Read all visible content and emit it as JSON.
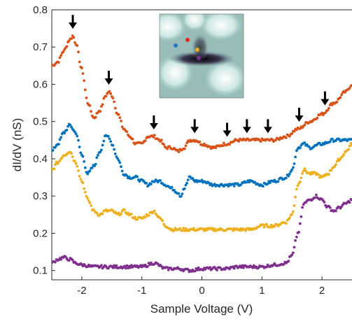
{
  "chart_data": {
    "type": "scatter",
    "title": "",
    "xlabel": "Sample Voltage (V)",
    "ylabel": "dI/dV (nS)",
    "xlim": [
      -2.5,
      2.5
    ],
    "ylim": [
      0.075,
      0.8
    ],
    "x_ticks": [
      -2,
      -1,
      0,
      1,
      2
    ],
    "y_ticks": [
      0.1,
      0.2,
      0.3,
      0.4,
      0.5,
      0.6,
      0.7,
      0.8
    ],
    "x_tick_labels": [
      "-2",
      "-1",
      "0",
      "1",
      "2"
    ],
    "y_tick_labels": [
      "0.1",
      "0.2",
      "0.3",
      "0.4",
      "0.5",
      "0.6",
      "0.7",
      "0.8"
    ],
    "grid": false,
    "legend": null,
    "series": [
      {
        "color": "#D95319",
        "x": [
          -2.5,
          -2.4,
          -2.3,
          -2.2,
          -2.15,
          -2.1,
          -2.0,
          -1.9,
          -1.8,
          -1.7,
          -1.6,
          -1.55,
          -1.5,
          -1.4,
          -1.3,
          -1.2,
          -1.1,
          -1.0,
          -0.9,
          -0.8,
          -0.7,
          -0.6,
          -0.5,
          -0.4,
          -0.3,
          -0.2,
          -0.1,
          0.0,
          0.2,
          0.4,
          0.6,
          0.8,
          1.0,
          1.2,
          1.4,
          1.6,
          1.8,
          2.0,
          2.2,
          2.4,
          2.5
        ],
        "values": [
          0.65,
          0.66,
          0.69,
          0.72,
          0.73,
          0.71,
          0.64,
          0.55,
          0.51,
          0.53,
          0.57,
          0.58,
          0.57,
          0.52,
          0.48,
          0.46,
          0.44,
          0.44,
          0.46,
          0.46,
          0.45,
          0.43,
          0.43,
          0.42,
          0.43,
          0.45,
          0.45,
          0.44,
          0.43,
          0.44,
          0.45,
          0.45,
          0.45,
          0.45,
          0.46,
          0.48,
          0.5,
          0.52,
          0.55,
          0.58,
          0.6
        ]
      },
      {
        "color": "#0072BD",
        "x": [
          -2.5,
          -2.4,
          -2.3,
          -2.2,
          -2.1,
          -2.0,
          -1.9,
          -1.8,
          -1.7,
          -1.6,
          -1.55,
          -1.5,
          -1.4,
          -1.3,
          -1.2,
          -1.1,
          -1.0,
          -0.9,
          -0.8,
          -0.7,
          -0.6,
          -0.5,
          -0.4,
          -0.35,
          -0.3,
          -0.2,
          -0.1,
          0.0,
          0.2,
          0.4,
          0.6,
          0.8,
          1.0,
          1.2,
          1.4,
          1.5,
          1.6,
          1.7,
          1.8,
          2.0,
          2.2,
          2.4,
          2.5
        ],
        "values": [
          0.42,
          0.44,
          0.47,
          0.49,
          0.47,
          0.41,
          0.36,
          0.38,
          0.42,
          0.46,
          0.46,
          0.44,
          0.4,
          0.36,
          0.35,
          0.35,
          0.34,
          0.33,
          0.34,
          0.34,
          0.33,
          0.32,
          0.31,
          0.3,
          0.32,
          0.35,
          0.34,
          0.34,
          0.33,
          0.33,
          0.33,
          0.34,
          0.33,
          0.34,
          0.35,
          0.37,
          0.43,
          0.44,
          0.43,
          0.44,
          0.45,
          0.45,
          0.45
        ]
      },
      {
        "color": "#EDB120",
        "x": [
          -2.5,
          -2.4,
          -2.3,
          -2.2,
          -2.1,
          -2.0,
          -1.9,
          -1.8,
          -1.7,
          -1.6,
          -1.5,
          -1.4,
          -1.3,
          -1.2,
          -1.1,
          -1.0,
          -0.9,
          -0.8,
          -0.7,
          -0.6,
          -0.5,
          -0.4,
          -0.2,
          0.0,
          0.2,
          0.4,
          0.6,
          0.8,
          1.0,
          1.2,
          1.4,
          1.5,
          1.6,
          1.7,
          1.8,
          1.9,
          2.0,
          2.1,
          2.2,
          2.3,
          2.4,
          2.5
        ],
        "values": [
          0.37,
          0.39,
          0.41,
          0.42,
          0.39,
          0.34,
          0.29,
          0.26,
          0.25,
          0.26,
          0.26,
          0.25,
          0.26,
          0.25,
          0.24,
          0.24,
          0.25,
          0.26,
          0.24,
          0.22,
          0.21,
          0.21,
          0.21,
          0.21,
          0.21,
          0.21,
          0.21,
          0.21,
          0.22,
          0.22,
          0.23,
          0.25,
          0.33,
          0.37,
          0.36,
          0.36,
          0.35,
          0.36,
          0.38,
          0.4,
          0.42,
          0.44
        ]
      },
      {
        "color": "#7E2F8E",
        "x": [
          -2.5,
          -2.4,
          -2.3,
          -2.2,
          -2.1,
          -2.0,
          -1.8,
          -1.6,
          -1.4,
          -1.2,
          -1.0,
          -0.8,
          -0.6,
          -0.4,
          -0.2,
          0.0,
          0.2,
          0.4,
          0.6,
          0.8,
          1.0,
          1.2,
          1.4,
          1.5,
          1.6,
          1.7,
          1.8,
          1.9,
          2.0,
          2.1,
          2.2,
          2.3,
          2.4,
          2.5
        ],
        "values": [
          0.12,
          0.13,
          0.135,
          0.13,
          0.12,
          0.115,
          0.11,
          0.11,
          0.11,
          0.11,
          0.11,
          0.12,
          0.105,
          0.105,
          0.1,
          0.105,
          0.105,
          0.105,
          0.11,
          0.11,
          0.11,
          0.115,
          0.12,
          0.14,
          0.2,
          0.28,
          0.29,
          0.3,
          0.29,
          0.27,
          0.26,
          0.27,
          0.28,
          0.29
        ]
      }
    ],
    "arrows_at_x": [
      -2.15,
      -1.55,
      -0.8,
      -0.12,
      0.42,
      0.75,
      1.1,
      1.62,
      2.05
    ],
    "inset": {
      "type": "heatmap",
      "markers": [
        {
          "color": "#E8251F"
        },
        {
          "color": "#2A75C2"
        },
        {
          "color": "#F0A820"
        },
        {
          "color": "#7E2F8E"
        }
      ]
    }
  }
}
